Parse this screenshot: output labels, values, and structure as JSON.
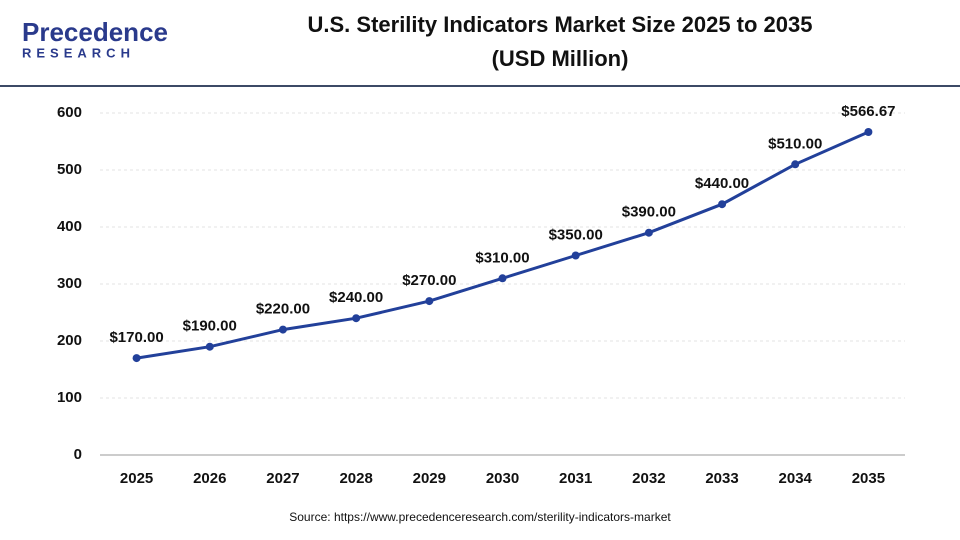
{
  "logo": {
    "name": "Precedence",
    "sub": "RESEARCH"
  },
  "chart_data": {
    "type": "line",
    "title": "U.S. Sterility Indicators Market Size 2025 to 2035",
    "subtitle": "(USD Million)",
    "categories": [
      "2025",
      "2026",
      "2027",
      "2028",
      "2029",
      "2030",
      "2031",
      "2032",
      "2033",
      "2034",
      "2035"
    ],
    "values": [
      170,
      190,
      220,
      240,
      270,
      310,
      350,
      390,
      440,
      510,
      566.67
    ],
    "value_labels": [
      "$170.00",
      "$190.00",
      "$220.00",
      "$240.00",
      "$270.00",
      "$310.00",
      "$350.00",
      "$390.00",
      "$440.00",
      "$510.00",
      "$566.67"
    ],
    "color": "#22409a",
    "ylim": [
      0,
      600
    ],
    "yticks": [
      0,
      100,
      200,
      300,
      400,
      500,
      600
    ],
    "grid": true,
    "source": "Source: https://www.precedenceresearch.com/sterility-indicators-market"
  }
}
